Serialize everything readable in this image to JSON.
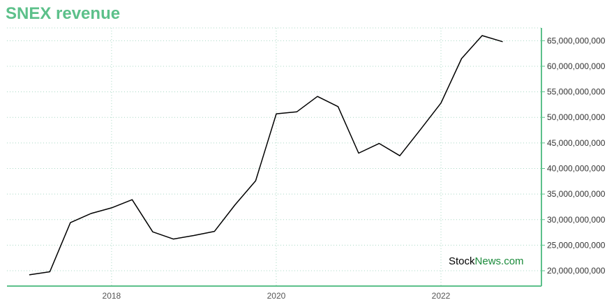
{
  "colors": {
    "title": "#5cc08a",
    "axis": "#5cc08a",
    "grid": "#a8d8c4",
    "line": "#000000",
    "watermark_dark": "#000000",
    "watermark_green": "#1a8a3a"
  },
  "watermark": {
    "part1": "Stock",
    "part2": "News.com"
  },
  "chart_data": {
    "type": "line",
    "title": "SNEX revenue",
    "xlabel": "",
    "ylabel": "",
    "x_ticks": [
      "2018",
      "2020",
      "2022"
    ],
    "x_tick_values": [
      2018.0,
      2020.0,
      2022.0
    ],
    "xlim": [
      2016.73,
      2023.22
    ],
    "y_ticks": [
      "20,000,000,000",
      "25,000,000,000",
      "30,000,000,000",
      "35,000,000,000",
      "40,000,000,000",
      "45,000,000,000",
      "50,000,000,000",
      "55,000,000,000",
      "60,000,000,000",
      "65,000,000,000"
    ],
    "y_tick_values": [
      20000000000,
      25000000000,
      30000000000,
      35000000000,
      40000000000,
      45000000000,
      50000000000,
      55000000000,
      60000000000,
      65000000000
    ],
    "ylim": [
      17000000000,
      67500000000
    ],
    "grid": true,
    "y_axis_position": "right",
    "series": [
      {
        "x": [
          2017.0,
          2017.25,
          2017.5,
          2017.75,
          2018.0,
          2018.25,
          2018.5,
          2018.75,
          2019.0,
          2019.25,
          2019.5,
          2019.75,
          2020.0,
          2020.25,
          2020.5,
          2020.75,
          2021.0,
          2021.25,
          2021.5,
          2021.75,
          2022.0,
          2022.25,
          2022.5,
          2022.75
        ],
        "values": [
          19200000000,
          19800000000,
          29400000000,
          31200000000,
          32300000000,
          33900000000,
          27600000000,
          26200000000,
          26900000000,
          27700000000,
          32900000000,
          37600000000,
          50700000000,
          51100000000,
          54100000000,
          52100000000,
          43000000000,
          44900000000,
          42500000000,
          47600000000,
          52800000000,
          61500000000,
          66000000000,
          64800000000
        ]
      }
    ]
  }
}
